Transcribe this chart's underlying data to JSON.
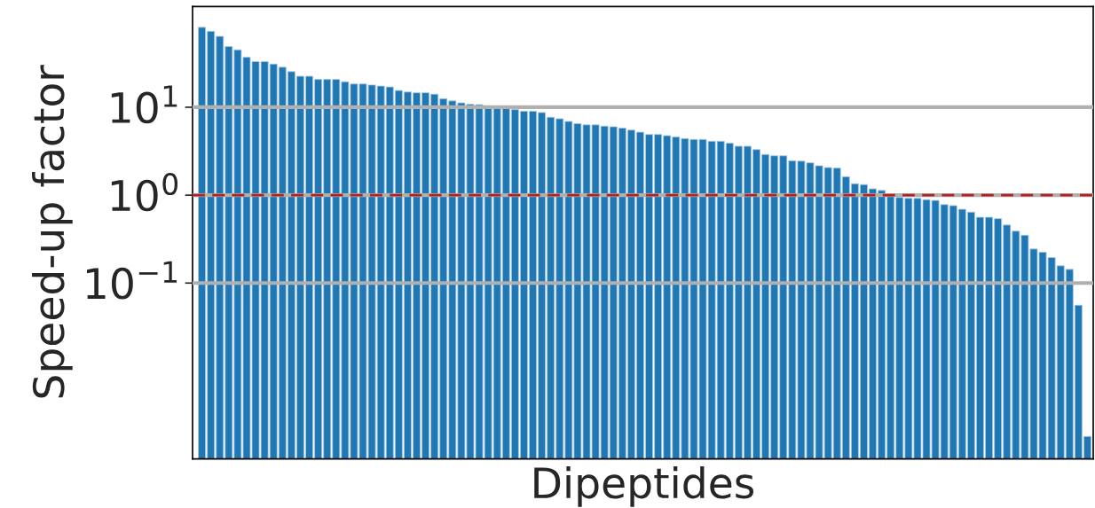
{
  "chart_data": {
    "type": "bar",
    "xlabel": "Dipeptides",
    "ylabel": "Speed-up factor",
    "categories": [
      null,
      null,
      null,
      null,
      null,
      null,
      null,
      null,
      null,
      null,
      null,
      null,
      null,
      null,
      null,
      null,
      null,
      null,
      null,
      null,
      null,
      null,
      null,
      null,
      null,
      null,
      null,
      null,
      null,
      null,
      null,
      null,
      null,
      null,
      null,
      null,
      null,
      null,
      null,
      null,
      null,
      null,
      null,
      null,
      null,
      null,
      null,
      null,
      null,
      null,
      null,
      null,
      null,
      null,
      null,
      null,
      null,
      null,
      null,
      null,
      null,
      null,
      null,
      null,
      null,
      null,
      null,
      null,
      null,
      null,
      null,
      null,
      null,
      null,
      null,
      null,
      null,
      null,
      null,
      null,
      null,
      null,
      null,
      null,
      null,
      null,
      null,
      null,
      null,
      null,
      null,
      null,
      null,
      null,
      null,
      null,
      null,
      null,
      null,
      null
    ],
    "values": [
      81,
      73,
      64,
      49,
      45,
      37,
      33,
      33,
      31,
      28.5,
      25.4,
      22.5,
      22.5,
      20.7,
      20.7,
      20.7,
      19.5,
      18.4,
      18.4,
      17.9,
      17.4,
      17,
      15.5,
      14.9,
      14.6,
      14.6,
      14.1,
      12.5,
      11.8,
      11.2,
      10.8,
      10.7,
      9.7,
      9.7,
      9.7,
      9.4,
      9.0,
      9.0,
      8.7,
      7.7,
      7.4,
      6.9,
      6.5,
      6.3,
      6.3,
      6.1,
      6.0,
      5.8,
      5.5,
      5.2,
      4.9,
      4.9,
      4.75,
      4.6,
      4.4,
      4.3,
      4.3,
      4.1,
      4.1,
      3.9,
      3.6,
      3.6,
      3.3,
      2.9,
      2.8,
      2.8,
      2.46,
      2.44,
      2.33,
      2.16,
      2.06,
      2.03,
      1.62,
      1.35,
      1.32,
      1.18,
      1.13,
      0.98,
      0.94,
      0.92,
      0.92,
      0.89,
      0.87,
      0.78,
      0.76,
      0.69,
      0.64,
      0.56,
      0.56,
      0.54,
      0.457,
      0.39,
      0.35,
      0.244,
      0.224,
      0.195,
      0.157,
      0.143,
      0.056,
      0.0018
    ],
    "color": "#1f77b4",
    "log": "y",
    "ylim": [
      0.001,
      140
    ],
    "yticks": [
      {
        "value": 0.1,
        "label": "10$^{−1}$"
      },
      {
        "value": 1,
        "label": "10$^{0}$"
      },
      {
        "value": 10,
        "label": "10$^{1}$"
      }
    ],
    "grid": "y",
    "tick_labels": "y",
    "ref_lines": [
      {
        "axis": "y",
        "value": 1,
        "color": "#b22222",
        "line_style": "dashed"
      }
    ]
  }
}
